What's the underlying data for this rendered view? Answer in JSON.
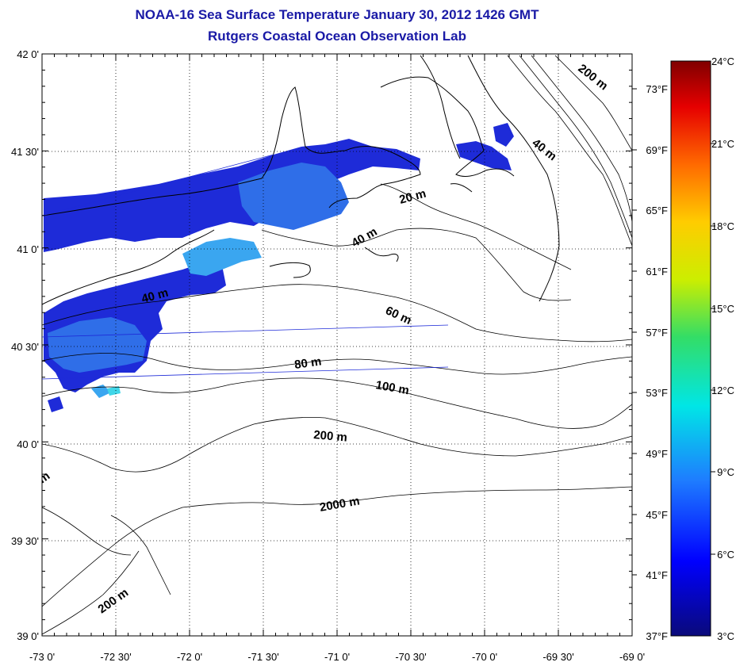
{
  "title": "NOAA-16 Sea Surface Temperature January 30, 2012 1426 GMT",
  "subtitle": "Rutgers Coastal Ocean Observation Lab",
  "map": {
    "lon_ticks": [
      "-73 0'",
      "-72 30'",
      "-72 0'",
      "-71 30'",
      "-71 0'",
      "-70 30'",
      "-70 0'",
      "-69 30'",
      "-69 0'"
    ],
    "lat_ticks": [
      "42 0'",
      "41 30'",
      "41 0'",
      "40 30'",
      "40 0'",
      "39 30'",
      "39 0'"
    ],
    "depth_labels": [
      "200 m",
      "40 m",
      "20 m",
      "40 m",
      "40 m",
      "60 m",
      "80 m",
      "100 m",
      "200 m",
      "2000 m",
      "200 m",
      "m"
    ]
  },
  "colorbar": {
    "celsius": [
      "24°C",
      "21°C",
      "18°C",
      "15°C",
      "12°C",
      "9°C",
      "6°C",
      "3°C"
    ],
    "fahrenheit": [
      "73°F",
      "69°F",
      "65°F",
      "61°F",
      "57°F",
      "53°F",
      "49°F",
      "45°F",
      "41°F",
      "37°F"
    ]
  },
  "colors": {
    "title": "#1a1aa6",
    "sst_dark": "#1e2bd8",
    "sst_mid": "#2f6ee8",
    "sst_light": "#3aa6f0",
    "sst_cyan": "#3fd6e8"
  }
}
